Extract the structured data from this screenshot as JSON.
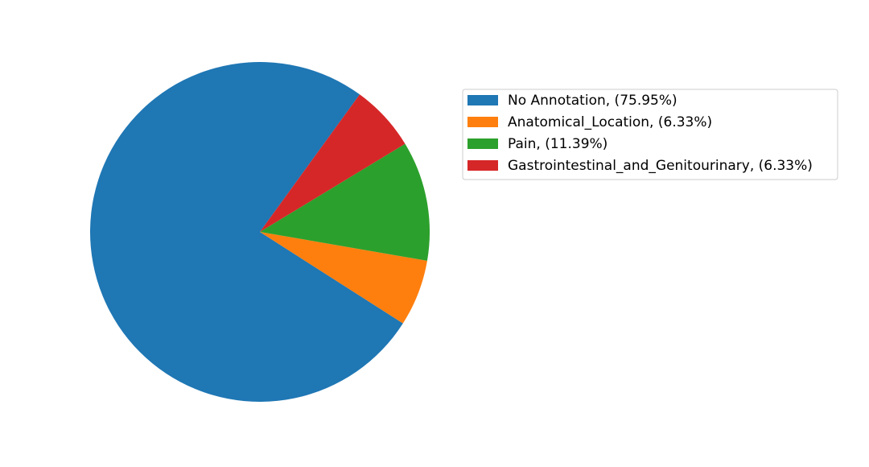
{
  "chart_data": {
    "type": "pie",
    "title": "",
    "legend_position": "right",
    "start_angle_deg": 54,
    "direction": "counterclockwise",
    "slices": [
      {
        "label": "No Annotation, (75.95%)",
        "category": "No Annotation",
        "value": 75.95,
        "color": "#1f77b4"
      },
      {
        "label": "Anatomical_Location, (6.33%)",
        "category": "Anatomical_Location",
        "value": 6.33,
        "color": "#ff7f0e"
      },
      {
        "label": "Pain, (11.39%)",
        "category": "Pain",
        "value": 11.39,
        "color": "#2ca02c"
      },
      {
        "label": "Gastrointestinal_and_Genitourinary, (6.33%)",
        "category": "Gastrointestinal_and_Genitourinary",
        "value": 6.33,
        "color": "#d62728"
      }
    ]
  }
}
